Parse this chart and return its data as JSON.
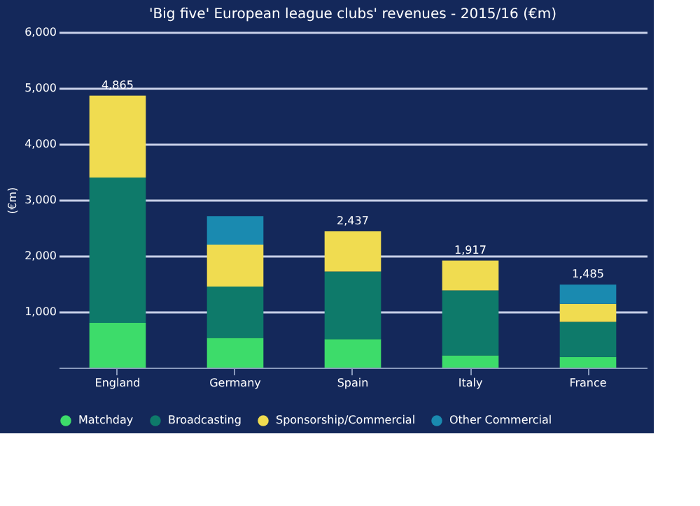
{
  "chart_data": {
    "type": "bar",
    "stacked": true,
    "title": "'Big five' European league clubs' revenues - 2015/16 (€m)",
    "ylabel": "(€m)",
    "categories": [
      "England",
      "Germany",
      "Spain",
      "Italy",
      "France"
    ],
    "series": [
      {
        "name": "Matchday",
        "color": "#3ddc6a",
        "values": [
          800,
          530,
          510,
          220,
          190
        ]
      },
      {
        "name": "Broadcasting",
        "color": "#0e7a6a",
        "values": [
          2600,
          920,
          1210,
          1160,
          630
        ]
      },
      {
        "name": "Sponsorship/Commercial",
        "color": "#f0dc50",
        "values": [
          1465,
          750,
          717,
          537,
          320
        ]
      },
      {
        "name": "Other Commercial",
        "color": "#1a8ab0",
        "values": [
          null,
          510,
          null,
          null,
          345
        ]
      }
    ],
    "totals": [
      "4,865",
      null,
      "2,437",
      "1,917",
      "1,485"
    ],
    "ylim": [
      0,
      6000
    ],
    "yticks": [
      {
        "value": 1000,
        "label": "1,000"
      },
      {
        "value": 2000,
        "label": "2,000"
      },
      {
        "value": 3000,
        "label": "3,000"
      },
      {
        "value": 4000,
        "label": "4,000"
      },
      {
        "value": 5000,
        "label": "5,000"
      },
      {
        "value": 6000,
        "label": "6,000"
      }
    ],
    "grid": "y",
    "legend": "bottom"
  }
}
